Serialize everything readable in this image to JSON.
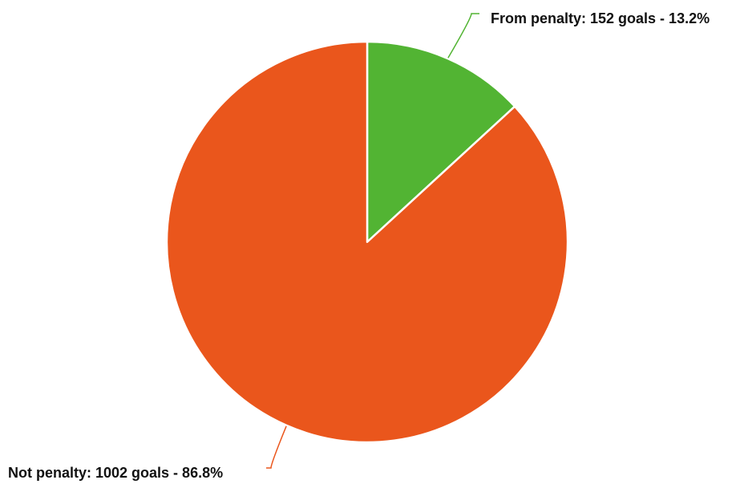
{
  "chart_data": {
    "type": "pie",
    "title": "",
    "slices": [
      {
        "label": "From penalty",
        "value": 152,
        "percent": 13.2,
        "display": "From penalty: 152 goals - 13.2%",
        "color": "#52b433"
      },
      {
        "label": "Not penalty",
        "value": 1002,
        "percent": 86.8,
        "display": "Not penalty: 1002 goals - 86.8%",
        "color": "#ea561c"
      }
    ],
    "start_angle": "12 o'clock",
    "direction": "clockwise",
    "legend": "none",
    "labels": "outside with connector lines"
  }
}
